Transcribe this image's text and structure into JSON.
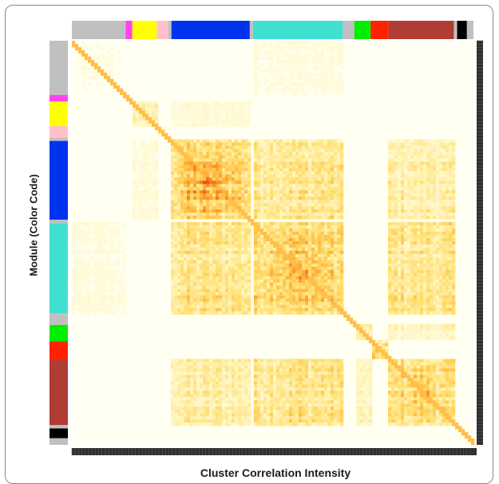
{
  "chart_data": {
    "type": "heatmap",
    "title": "",
    "xlabel": "Cluster Correlation Intensity",
    "ylabel": "Module (Color Code)",
    "colorscale": [
      "#fffff2",
      "#fff6c2",
      "#ffde6e",
      "#ffb43c",
      "#f57a1e",
      "#e04a12"
    ],
    "modules": [
      {
        "color": "#c0c0c0",
        "size": 33,
        "within": 0.1
      },
      {
        "color": "#ff44ee",
        "size": 4,
        "within": 0.1
      },
      {
        "color": "#ffff00",
        "size": 15,
        "within": 0.35
      },
      {
        "color": "#ffc0cb",
        "size": 7,
        "within": 0.15
      },
      {
        "color": "#c0c0c0",
        "size": 2,
        "within": 0.1
      },
      {
        "color": "#0033ee",
        "size": 48,
        "within": 0.75
      },
      {
        "color": "#c0c0c0",
        "size": 2,
        "within": 0.1
      },
      {
        "color": "#40e0d0",
        "size": 55,
        "within": 0.7
      },
      {
        "color": "#c0c0c0",
        "size": 7,
        "within": 0.1
      },
      {
        "color": "#00ee00",
        "size": 10,
        "within": 0.4
      },
      {
        "color": "#ff2200",
        "size": 11,
        "within": 0.55
      },
      {
        "color": "#b03c33",
        "size": 40,
        "within": 0.6
      },
      {
        "color": "#c0c0c0",
        "size": 2,
        "within": 0.1
      },
      {
        "color": "#000000",
        "size": 6,
        "within": 0.1
      },
      {
        "color": "#c0c0c0",
        "size": 4,
        "within": 0.1
      }
    ],
    "cross_module": [
      {
        "a": 5,
        "b": 7,
        "value": 0.45
      },
      {
        "a": 5,
        "b": 11,
        "value": 0.35
      },
      {
        "a": 7,
        "b": 11,
        "value": 0.45
      },
      {
        "a": 2,
        "b": 5,
        "value": 0.15
      },
      {
        "a": 9,
        "b": 11,
        "value": 0.25
      },
      {
        "a": 0,
        "b": 7,
        "value": 0.12
      }
    ]
  }
}
